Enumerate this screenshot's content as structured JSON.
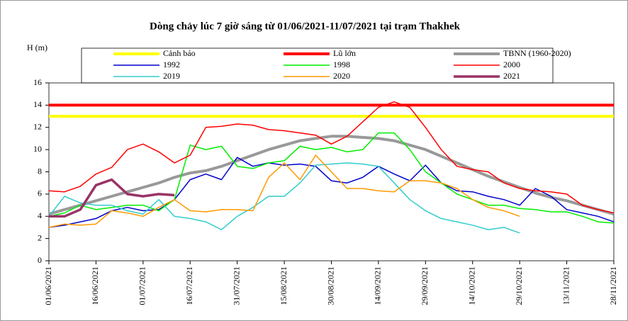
{
  "chart_data": {
    "type": "line",
    "title": "Dòng chảy lúc 7 giờ sáng từ 01/06/2021-11/07/2021 tại trạm Thakhek",
    "ylabel": "H (m)",
    "x": [
      "01/06/2021",
      "06/06/2021",
      "11/06/2021",
      "16/06/2021",
      "21/06/2021",
      "26/06/2021",
      "01/07/2021",
      "06/07/2021",
      "11/07/2021",
      "16/07/2021",
      "21/07/2021",
      "26/07/2021",
      "31/07/2021",
      "05/08/2021",
      "10/08/2021",
      "15/08/2021",
      "20/08/2021",
      "25/08/2021",
      "30/08/2021",
      "04/09/2021",
      "09/09/2021",
      "14/09/2021",
      "19/09/2021",
      "24/09/2021",
      "29/09/2021",
      "04/10/2021",
      "09/10/2021",
      "14/10/2021",
      "19/10/2021",
      "24/10/2021",
      "29/10/2021",
      "03/11/2021",
      "08/11/2021",
      "13/11/2021",
      "18/11/2021",
      "23/11/2021",
      "28/11/2021"
    ],
    "xlim": [
      "01/06/2021",
      "28/11/2021"
    ],
    "xticks": [
      "01/06/2021",
      "16/06/2021",
      "01/07/2021",
      "16/07/2021",
      "31/07/2021",
      "15/08/2021",
      "30/08/2021",
      "14/09/2021",
      "29/09/2021",
      "14/10/2021",
      "29/10/2021",
      "13/11/2021",
      "28/11/2021"
    ],
    "ylim": [
      0,
      16
    ],
    "yticks": [
      0,
      2,
      4,
      6,
      8,
      10,
      12,
      14,
      16
    ],
    "series": [
      {
        "name": "Cảnh báo",
        "color": "#ffff00",
        "values": [
          13,
          13,
          13,
          13,
          13,
          13,
          13,
          13,
          13,
          13,
          13,
          13,
          13,
          13,
          13,
          13,
          13,
          13,
          13,
          13,
          13,
          13,
          13,
          13,
          13,
          13,
          13,
          13,
          13,
          13,
          13,
          13,
          13,
          13,
          13,
          13,
          13
        ]
      },
      {
        "name": "Lũ lớn",
        "color": "#ff0000",
        "values": [
          14,
          14,
          14,
          14,
          14,
          14,
          14,
          14,
          14,
          14,
          14,
          14,
          14,
          14,
          14,
          14,
          14,
          14,
          14,
          14,
          14,
          14,
          14,
          14,
          14,
          14,
          14,
          14,
          14,
          14,
          14,
          14,
          14,
          14,
          14,
          14,
          14
        ]
      },
      {
        "name": "TBNN (1960-2020)",
        "color": "#999999",
        "values": [
          4.2,
          4.6,
          5.0,
          5.4,
          5.8,
          6.2,
          6.6,
          7.0,
          7.5,
          7.9,
          8.1,
          8.5,
          9.0,
          9.5,
          10.0,
          10.4,
          10.8,
          11.0,
          11.2,
          11.2,
          11.1,
          11.0,
          10.8,
          10.4,
          10.0,
          9.4,
          8.8,
          8.2,
          7.6,
          7.1,
          6.6,
          6.1,
          5.7,
          5.4,
          5.0,
          4.6,
          4.2
        ]
      },
      {
        "name": "1992",
        "color": "#0000cc",
        "values": [
          3.0,
          3.2,
          3.5,
          3.8,
          4.5,
          4.8,
          4.5,
          4.6,
          5.5,
          7.3,
          7.8,
          7.3,
          9.3,
          8.5,
          8.8,
          8.6,
          8.7,
          8.5,
          7.2,
          7.0,
          7.5,
          8.5,
          7.8,
          7.2,
          8.6,
          7.0,
          6.3,
          6.2,
          5.8,
          5.5,
          5.0,
          6.5,
          5.8,
          4.6,
          4.3,
          4.0,
          3.5
        ]
      },
      {
        "name": "1998",
        "color": "#00ee00",
        "values": [
          4.0,
          4.3,
          5.0,
          4.6,
          4.8,
          5.0,
          5.0,
          4.5,
          5.5,
          10.4,
          10.0,
          10.3,
          8.5,
          8.3,
          8.8,
          9.0,
          10.3,
          10.0,
          10.2,
          9.8,
          10.0,
          11.5,
          11.5,
          10.0,
          8.0,
          7.0,
          6.0,
          5.5,
          5.0,
          5.0,
          4.7,
          4.6,
          4.4,
          4.4,
          4.0,
          3.5,
          3.4
        ]
      },
      {
        "name": "2000",
        "color": "#ff0000",
        "values": [
          6.3,
          6.2,
          6.7,
          7.8,
          8.4,
          10.0,
          10.5,
          9.8,
          8.8,
          9.5,
          12.0,
          12.1,
          12.3,
          12.2,
          11.8,
          11.7,
          11.5,
          11.3,
          10.5,
          11.2,
          12.5,
          13.8,
          14.3,
          13.8,
          12.0,
          10.0,
          8.5,
          8.2,
          8.0,
          7.0,
          6.5,
          6.3,
          6.2,
          6.0,
          5.0,
          4.6,
          4.3
        ]
      },
      {
        "name": "2019",
        "color": "#33cccc",
        "values": [
          4.0,
          5.8,
          5.2,
          5.0,
          5.0,
          4.5,
          4.2,
          5.5,
          4.0,
          3.8,
          3.5,
          2.8,
          4.0,
          4.8,
          5.8,
          5.8,
          7.0,
          8.6,
          8.7,
          8.8,
          8.7,
          8.5,
          7.0,
          5.5,
          4.5,
          3.8,
          3.5,
          3.2,
          2.8,
          3.0,
          2.5,
          null,
          null,
          null,
          null,
          null,
          null
        ]
      },
      {
        "name": "2020",
        "color": "#ff9900",
        "values": [
          3.0,
          3.3,
          3.2,
          3.3,
          4.5,
          4.3,
          4.0,
          4.8,
          5.5,
          4.5,
          4.4,
          4.6,
          4.6,
          4.5,
          7.5,
          8.8,
          7.3,
          9.5,
          8.0,
          6.5,
          6.5,
          6.3,
          6.2,
          7.2,
          7.2,
          7.0,
          6.5,
          5.5,
          4.8,
          4.5,
          4.0,
          null,
          null,
          null,
          null,
          null,
          null
        ]
      },
      {
        "name": "2021",
        "color": "#993366",
        "values": [
          4.0,
          4.0,
          4.6,
          6.8,
          7.3,
          6.0,
          5.8,
          6.0,
          5.9,
          null,
          null,
          null,
          null,
          null,
          null,
          null,
          null,
          null,
          null,
          null,
          null,
          null,
          null,
          null,
          null,
          null,
          null,
          null,
          null,
          null,
          null,
          null,
          null,
          null,
          null,
          null,
          null
        ]
      }
    ]
  }
}
